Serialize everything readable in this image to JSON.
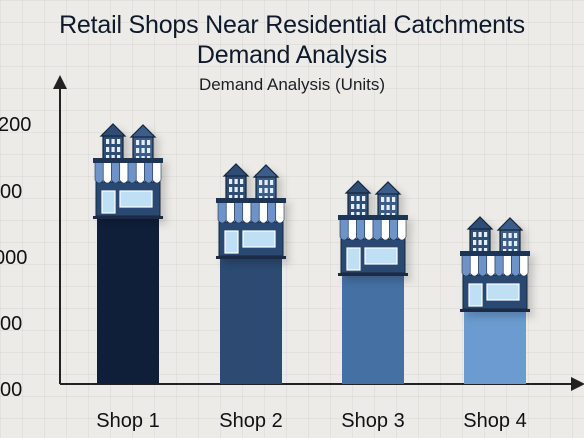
{
  "chart_data": {
    "type": "bar",
    "title_line1": "Retail Shops Near Residential Catchments",
    "title_line2": "Demand Analysis",
    "subtitle": "Demand Analysis (Units)",
    "categories": [
      "Shop 1",
      "Shop 2",
      "Shop 3",
      "Shop 4"
    ],
    "values": [
      830,
      630,
      545,
      365
    ],
    "y_tick_labels": [
      "200",
      "00",
      "000",
      "00",
      "00"
    ],
    "colors": [
      "#0f1f3a",
      "#2c4a72",
      "#4570a3",
      "#6b9bd0"
    ],
    "awning_color": "#6d93c8",
    "grid": true
  }
}
